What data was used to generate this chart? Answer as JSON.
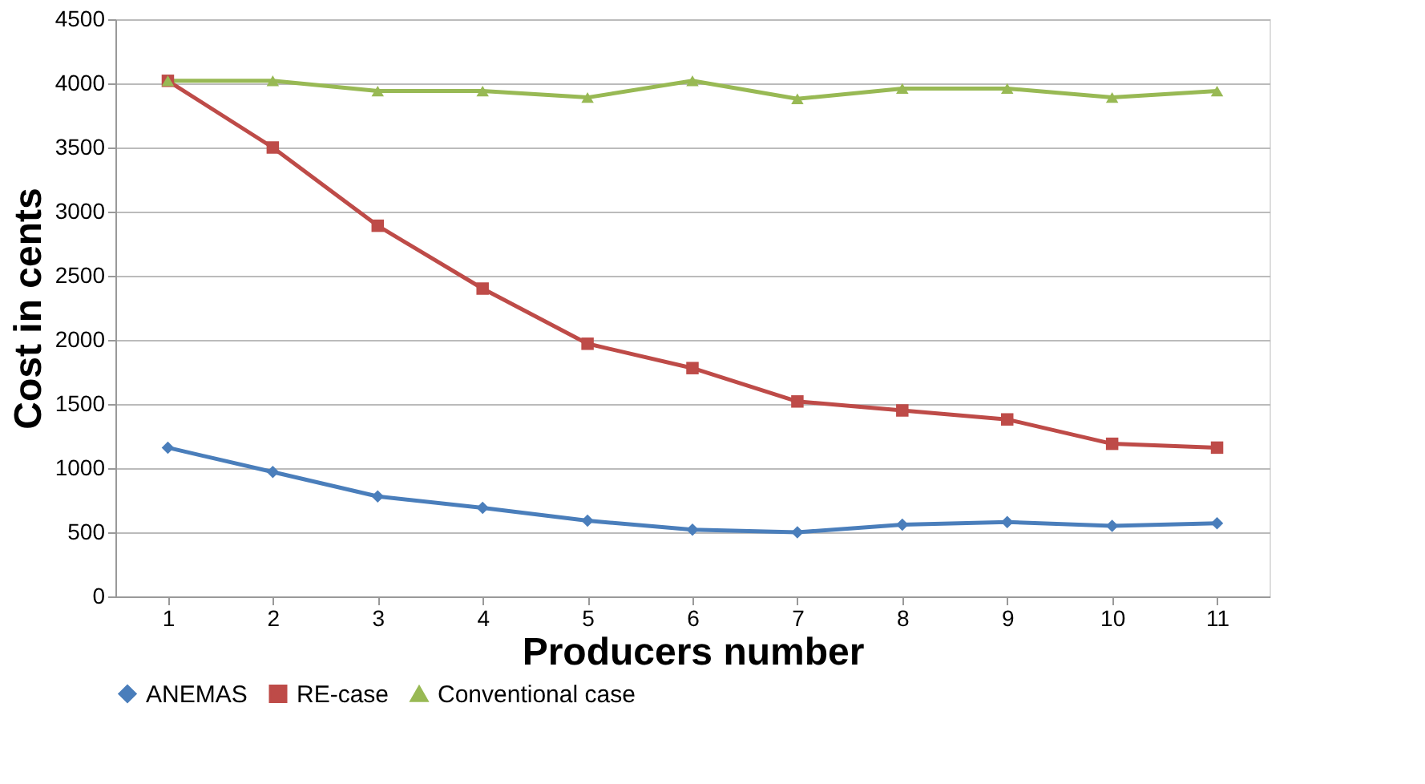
{
  "chart_data": {
    "type": "line",
    "xlabel": "Producers number",
    "ylabel": "Cost in cents",
    "categories": [
      "1",
      "2",
      "3",
      "4",
      "5",
      "6",
      "7",
      "8",
      "9",
      "10",
      "11"
    ],
    "series": [
      {
        "name": "ANEMAS",
        "color": "#4a7ebb",
        "marker": "diamond",
        "values": [
          1160,
          970,
          780,
          690,
          590,
          520,
          500,
          560,
          580,
          550,
          570
        ]
      },
      {
        "name": "RE-case",
        "color": "#be4b48",
        "marker": "square",
        "values": [
          4020,
          3500,
          2890,
          2400,
          1970,
          1780,
          1520,
          1450,
          1380,
          1190,
          1160
        ]
      },
      {
        "name": "Conventional case",
        "color": "#98b954",
        "marker": "triangle",
        "values": [
          4020,
          4020,
          3940,
          3940,
          3890,
          4020,
          3880,
          3960,
          3960,
          3890,
          3940
        ]
      }
    ],
    "ylim": [
      0,
      4500
    ],
    "yticks": [
      0,
      500,
      1000,
      1500,
      2000,
      2500,
      3000,
      3500,
      4000,
      4500
    ],
    "grid": "y",
    "legend": "bottom",
    "line_style": "solid"
  }
}
